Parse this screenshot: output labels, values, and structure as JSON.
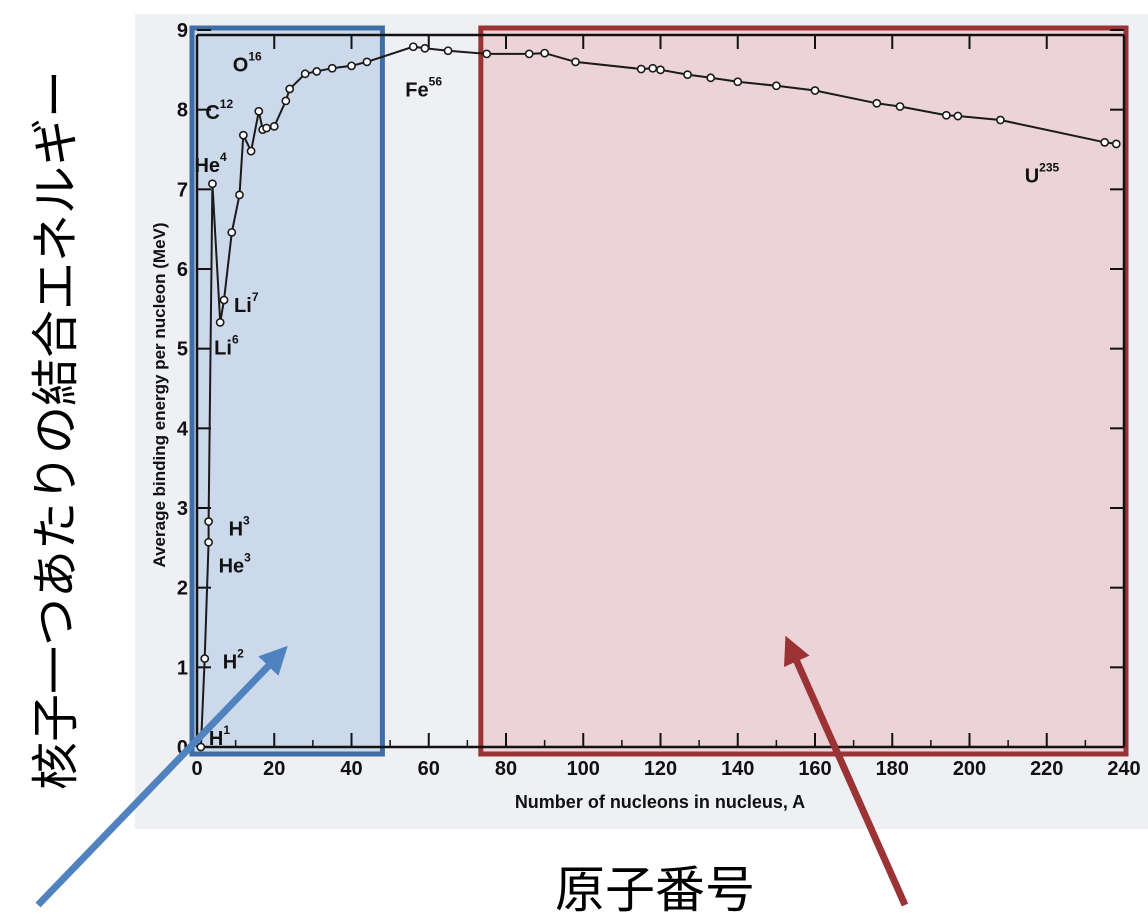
{
  "labels": {
    "vertical_title": "核子一つあたりの結合エネルギー",
    "bottom_title": "原子番号"
  },
  "colors": {
    "light_region_fill": "#ccd9ea",
    "light_region_border": "#3f6ea6",
    "heavy_region_fill": "#ebd3d8",
    "heavy_region_border": "#9b3234",
    "arrow_blue": "#4f82be",
    "arrow_red": "#9b3234",
    "curve": "#1a1a1a",
    "plot_bg": "#eef0f3"
  },
  "chart_data": {
    "type": "line",
    "xlabel": "Number of nucleons in nucleus, A",
    "ylabel": "Average binding energy per nucleon (MeV)",
    "xlim": [
      0,
      240
    ],
    "ylim": [
      0,
      9
    ],
    "x_ticks": [
      0,
      20,
      40,
      60,
      80,
      100,
      120,
      140,
      160,
      180,
      200,
      220,
      240
    ],
    "y_ticks": [
      0,
      1,
      2,
      3,
      4,
      5,
      6,
      7,
      8,
      9
    ],
    "regions": [
      {
        "name": "light",
        "x_range": [
          0,
          48
        ]
      },
      {
        "name": "heavy",
        "x_range": [
          74,
          240
        ]
      }
    ],
    "series": [
      {
        "points": [
          [
            1,
            0
          ],
          [
            2,
            1.11
          ],
          [
            3,
            2.57
          ],
          [
            3,
            2.83
          ],
          [
            4,
            7.07
          ],
          [
            6,
            5.33
          ],
          [
            7,
            5.61
          ],
          [
            9,
            6.46
          ],
          [
            11,
            6.93
          ],
          [
            12,
            7.68
          ],
          [
            14,
            7.48
          ],
          [
            16,
            7.98
          ],
          [
            17,
            7.75
          ],
          [
            18,
            7.77
          ],
          [
            20,
            7.79
          ],
          [
            23,
            8.11
          ],
          [
            24,
            8.26
          ],
          [
            28,
            8.45
          ],
          [
            31,
            8.48
          ],
          [
            35,
            8.52
          ],
          [
            40,
            8.55
          ],
          [
            44,
            8.6
          ],
          [
            56,
            8.79
          ],
          [
            59,
            8.77
          ],
          [
            65,
            8.74
          ],
          [
            75,
            8.7
          ],
          [
            86,
            8.7
          ],
          [
            90,
            8.71
          ],
          [
            98,
            8.6
          ],
          [
            115,
            8.51
          ],
          [
            118,
            8.52
          ],
          [
            120,
            8.5
          ],
          [
            127,
            8.44
          ],
          [
            133,
            8.4
          ],
          [
            140,
            8.35
          ],
          [
            150,
            8.3
          ],
          [
            160,
            8.24
          ],
          [
            176,
            8.08
          ],
          [
            182,
            8.04
          ],
          [
            194,
            7.93
          ],
          [
            197,
            7.92
          ],
          [
            208,
            7.87
          ],
          [
            235,
            7.59
          ],
          [
            238,
            7.57
          ]
        ]
      }
    ],
    "annotations": [
      {
        "text": "H",
        "sup": "1",
        "x": 1,
        "y": 0
      },
      {
        "text": "H",
        "sup": "2",
        "x": 2,
        "y": 1.11
      },
      {
        "text": "He",
        "sup": "3",
        "x": 3,
        "y": 2.57
      },
      {
        "text": "H",
        "sup": "3",
        "x": 3,
        "y": 2.83
      },
      {
        "text": "He",
        "sup": "4",
        "x": 4,
        "y": 7.07
      },
      {
        "text": "Li",
        "sup": "6",
        "x": 6,
        "y": 5.33
      },
      {
        "text": "Li",
        "sup": "7",
        "x": 7,
        "y": 5.61
      },
      {
        "text": "C",
        "sup": "12",
        "x": 12,
        "y": 7.68
      },
      {
        "text": "O",
        "sup": "16",
        "x": 16,
        "y": 7.98
      },
      {
        "text": "Fe",
        "sup": "56",
        "x": 56,
        "y": 8.79
      },
      {
        "text": "U",
        "sup": "235",
        "x": 235,
        "y": 7.59
      }
    ]
  }
}
